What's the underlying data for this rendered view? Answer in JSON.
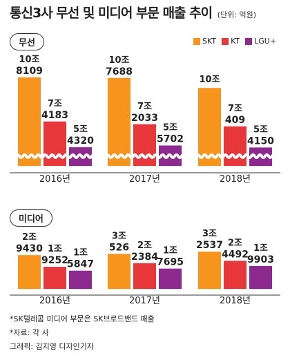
{
  "header": {
    "title": "통신3사 무선 및 미디어 부문 매출 추이",
    "unit": "(단위: 억원)"
  },
  "legend": [
    {
      "name": "SKT",
      "color": "#f7941d"
    },
    {
      "name": "KT",
      "color": "#e8373a"
    },
    {
      "name": "LGU+",
      "color": "#8e2a8f"
    }
  ],
  "chart_data": [
    {
      "type": "bar",
      "title": "무선",
      "categories": [
        "2016년",
        "2017년",
        "2018년"
      ],
      "axis_break": true,
      "series": [
        {
          "name": "SKT",
          "values": [
            "10조 8109",
            "10조 7688",
            "10조"
          ],
          "numeric_values": [
            108109,
            107688,
            100000
          ]
        },
        {
          "name": "KT",
          "values": [
            "7조 4183",
            "7조 2033",
            "7조 409"
          ],
          "numeric_values": [
            74183,
            72033,
            70409
          ]
        },
        {
          "name": "LGU+",
          "values": [
            "5조 4320",
            "5조 5702",
            "5조 4150"
          ],
          "numeric_values": [
            54320,
            55702,
            54150
          ]
        }
      ]
    },
    {
      "type": "bar",
      "title": "미디어",
      "categories": [
        "2016년",
        "2017년",
        "2018년"
      ],
      "series": [
        {
          "name": "SKT",
          "values": [
            "2조 9430",
            "3조 526",
            "3조 2537"
          ],
          "numeric_values": [
            29430,
            30526,
            32537
          ]
        },
        {
          "name": "KT",
          "values": [
            "1조 9252",
            "2조 2384",
            "2조 4492"
          ],
          "numeric_values": [
            19252,
            22384,
            24492
          ]
        },
        {
          "name": "LGU+",
          "values": [
            "1조 5847",
            "1조 7695",
            "1조 9903"
          ],
          "numeric_values": [
            15847,
            17695,
            19903
          ]
        }
      ]
    }
  ],
  "notes": [
    "*SK텔레콤 미디어 부문은 SK브로드밴드 매출",
    "*자료: 각 사",
    "그래픽: 김지영 디자인기자"
  ]
}
